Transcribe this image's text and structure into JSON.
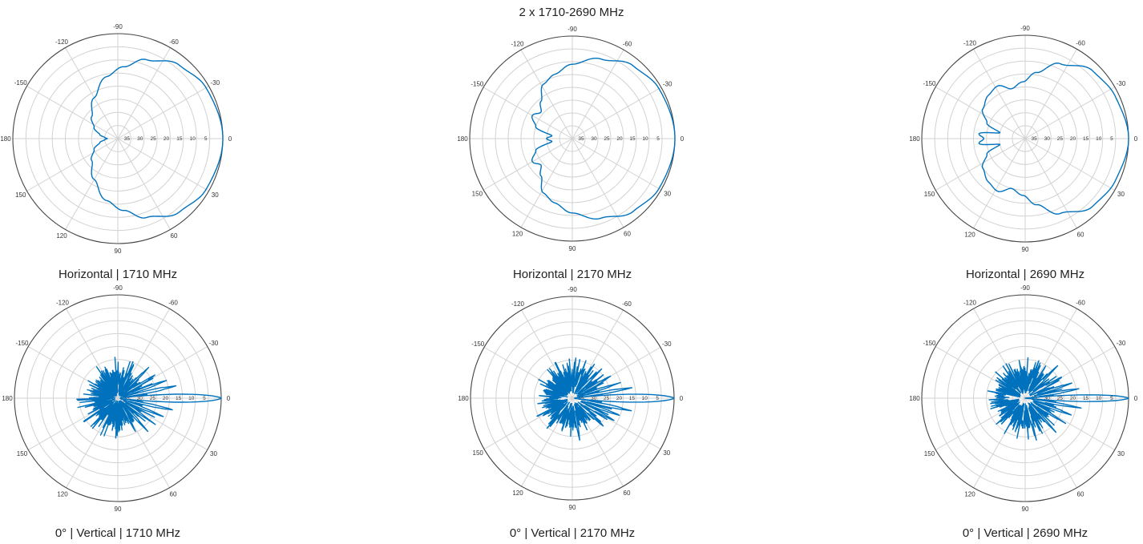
{
  "figure_title": "2 x 1710-2690 MHz",
  "colors": {
    "pattern": "#0072bd",
    "grid": "#d2d2d2",
    "outer_ring": "#444444",
    "text": "#222222"
  },
  "chart_data": [
    {
      "type": "polar",
      "caption": "Horizontal  |  1710 MHz",
      "angle_ticks": [
        "0",
        "-30",
        "-60",
        "-90",
        "-120",
        "-150",
        "180",
        "150",
        "120",
        "90",
        "60",
        "30"
      ],
      "radial_ticks": [
        "5",
        "10",
        "15",
        "20",
        "25",
        "30",
        "35"
      ],
      "r_scale": "attenuation_dB",
      "r_range": [
        0,
        40
      ],
      "direction": "clockwise",
      "zero": "right",
      "grid": true,
      "series": [
        {
          "kind": "smooth",
          "points": [
            [
              0,
              0
            ],
            [
              30,
              1.2
            ],
            [
              50,
              3.5
            ],
            [
              70,
              8
            ],
            [
              85,
              12.5
            ],
            [
              100,
              16
            ],
            [
              120,
              22
            ],
            [
              140,
              27
            ],
            [
              155,
              30
            ],
            [
              168,
              33
            ],
            [
              175,
              35
            ],
            [
              180,
              36
            ],
            [
              185,
              35
            ],
            [
              192,
              33
            ],
            [
              205,
              30
            ],
            [
              220,
              27
            ],
            [
              240,
              22
            ],
            [
              260,
              16
            ],
            [
              275,
              12.5
            ],
            [
              290,
              8
            ],
            [
              310,
              3.5
            ],
            [
              330,
              1.2
            ],
            [
              360,
              0
            ]
          ]
        }
      ]
    },
    {
      "type": "polar",
      "caption": "Horizontal  |  2170 MHz",
      "angle_ticks": [
        "0",
        "-30",
        "-60",
        "-90",
        "-120",
        "-150",
        "180",
        "150",
        "120",
        "90",
        "60",
        "30"
      ],
      "radial_ticks": [
        "5",
        "10",
        "15",
        "20",
        "25",
        "30",
        "35"
      ],
      "r_scale": "attenuation_dB",
      "r_range": [
        0,
        40
      ],
      "direction": "clockwise",
      "zero": "right",
      "grid": true,
      "series": [
        {
          "kind": "smooth",
          "points": [
            [
              0,
              0
            ],
            [
              30,
              1
            ],
            [
              50,
              3
            ],
            [
              70,
              7
            ],
            [
              90,
              11
            ],
            [
              105,
              14
            ],
            [
              118,
              16
            ],
            [
              130,
              21
            ],
            [
              140,
              24
            ],
            [
              150,
              22
            ],
            [
              162,
              25
            ],
            [
              172,
              32
            ],
            [
              180,
              30
            ],
            [
              188,
              32
            ],
            [
              198,
              25
            ],
            [
              210,
              22
            ],
            [
              220,
              24
            ],
            [
              230,
              21
            ],
            [
              242,
              16
            ],
            [
              255,
              14
            ],
            [
              270,
              11
            ],
            [
              290,
              7
            ],
            [
              310,
              3
            ],
            [
              330,
              1
            ],
            [
              360,
              0
            ]
          ]
        }
      ]
    },
    {
      "type": "polar",
      "caption": "Horizontal  |  2690 MHz",
      "angle_ticks": [
        "0",
        "-30",
        "-60",
        "-90",
        "-120",
        "-150",
        "180",
        "150",
        "120",
        "90",
        "60",
        "30"
      ],
      "radial_ticks": [
        "5",
        "10",
        "15",
        "20",
        "25",
        "30",
        "35"
      ],
      "r_scale": "attenuation_dB",
      "r_range": [
        0,
        40
      ],
      "direction": "clockwise",
      "zero": "right",
      "grid": true,
      "series": [
        {
          "kind": "smooth",
          "points": [
            [
              0,
              0
            ],
            [
              25,
              1.5
            ],
            [
              45,
              3
            ],
            [
              65,
              8
            ],
            [
              80,
              14
            ],
            [
              92,
              18
            ],
            [
              105,
              20
            ],
            [
              118,
              17
            ],
            [
              130,
              18
            ],
            [
              145,
              20
            ],
            [
              158,
              24
            ],
            [
              167,
              30
            ],
            [
              174,
              22
            ],
            [
              180,
              24
            ],
            [
              186,
              22
            ],
            [
              193,
              30
            ],
            [
              202,
              24
            ],
            [
              215,
              20
            ],
            [
              230,
              18
            ],
            [
              242,
              17
            ],
            [
              255,
              20
            ],
            [
              268,
              18
            ],
            [
              280,
              14
            ],
            [
              295,
              8
            ],
            [
              315,
              3
            ],
            [
              335,
              1.5
            ],
            [
              360,
              0
            ]
          ]
        }
      ]
    },
    {
      "type": "polar",
      "caption": "0°  |  Vertical  |  1710 MHz",
      "angle_ticks": [
        "0",
        "-30",
        "-60",
        "-90",
        "-120",
        "-150",
        "180",
        "150",
        "120",
        "90",
        "60",
        "30"
      ],
      "radial_ticks": [
        "5",
        "10",
        "15",
        "20",
        "25",
        "30",
        "35"
      ],
      "r_scale": "attenuation_dB",
      "r_range": [
        0,
        40
      ],
      "direction": "clockwise",
      "zero": "right",
      "grid": true,
      "series": [
        {
          "kind": "spiky",
          "mainlobe_deg": 3,
          "sidelobes": [
            [
              -12,
              16
            ],
            [
              -20,
              19
            ],
            [
              -32,
              22
            ],
            [
              -45,
              22
            ],
            [
              -65,
              24
            ],
            [
              12,
              17
            ],
            [
              22,
              20
            ],
            [
              35,
              22
            ],
            [
              48,
              22
            ],
            [
              62,
              24
            ]
          ],
          "backlobe": 36,
          "floor": 34
        }
      ]
    },
    {
      "type": "polar",
      "caption": "0°  |  Vertical  |  2170 MHz",
      "angle_ticks": [
        "0",
        "-30",
        "-60",
        "-90",
        "-120",
        "-150",
        "180",
        "150",
        "120",
        "90",
        "60",
        "30"
      ],
      "radial_ticks": [
        "5",
        "10",
        "15",
        "20",
        "25",
        "30",
        "35"
      ],
      "r_scale": "attenuation_dB",
      "r_range": [
        0,
        40
      ],
      "direction": "clockwise",
      "zero": "right",
      "grid": true,
      "series": [
        {
          "kind": "spiky",
          "mainlobe_deg": 3,
          "sidelobes": [
            [
              -10,
              16
            ],
            [
              -18,
              20
            ],
            [
              -30,
              21
            ],
            [
              -45,
              23
            ],
            [
              -70,
              24
            ],
            [
              12,
              16
            ],
            [
              20,
              19
            ],
            [
              28,
              20
            ],
            [
              42,
              22
            ],
            [
              80,
              22
            ]
          ],
          "backlobe": 32,
          "floor": 33
        }
      ]
    },
    {
      "type": "polar",
      "caption": "0°  |  Vertical  |  2690 MHz",
      "angle_ticks": [
        "0",
        "-30",
        "-60",
        "-90",
        "-120",
        "-150",
        "180",
        "150",
        "120",
        "90",
        "60",
        "30"
      ],
      "radial_ticks": [
        "5",
        "10",
        "15",
        "20",
        "25",
        "30",
        "35"
      ],
      "r_scale": "attenuation_dB",
      "r_range": [
        0,
        40
      ],
      "direction": "clockwise",
      "zero": "right",
      "grid": true,
      "series": [
        {
          "kind": "spiky",
          "mainlobe_deg": 2.5,
          "sidelobes": [
            [
              -10,
              18
            ],
            [
              -18,
              20
            ],
            [
              -30,
              22
            ],
            [
              -45,
              22
            ],
            [
              -70,
              24
            ],
            [
              10,
              18
            ],
            [
              20,
              20
            ],
            [
              32,
              21
            ],
            [
              48,
              22
            ],
            [
              75,
              23
            ]
          ],
          "backlobe": 30,
          "floor": 33
        }
      ]
    }
  ]
}
